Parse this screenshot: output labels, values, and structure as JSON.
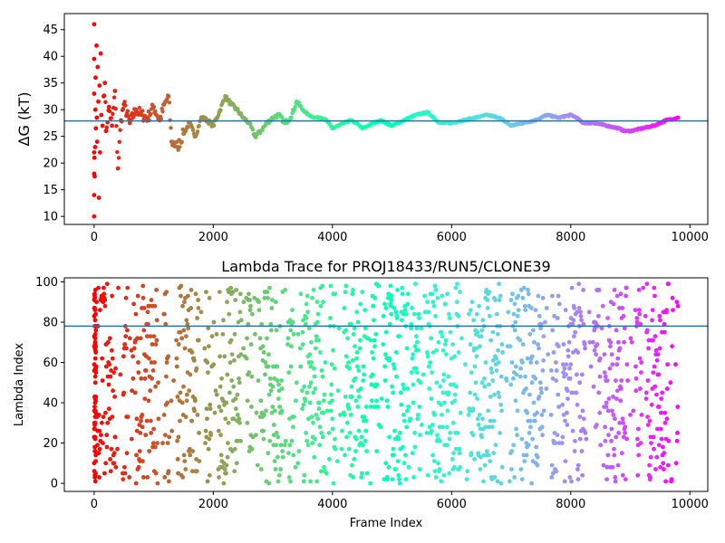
{
  "chart_data": [
    {
      "type": "scatter",
      "title": "",
      "xlabel": "",
      "ylabel": "ΔG (kT)",
      "xlim": [
        -500,
        10300
      ],
      "ylim": [
        8.5,
        48
      ],
      "xticks": [
        0,
        2000,
        4000,
        6000,
        8000,
        10000
      ],
      "yticks": [
        10,
        15,
        20,
        25,
        30,
        35,
        40,
        45
      ],
      "xtick_labels": [
        "0",
        "2000",
        "4000",
        "6000",
        "8000",
        "10000"
      ],
      "ytick_labels": [
        "10",
        "15",
        "20",
        "25",
        "30",
        "35",
        "40",
        "45"
      ],
      "hline": 27.9,
      "hline_color": "#1f77b4",
      "colormap": "rainbow (early frames red → late frames violet)",
      "grid": false,
      "series": [
        {
          "points": [
            [
              0,
              46.0
            ],
            [
              0,
              10.0
            ],
            [
              0,
              14.0
            ],
            [
              0,
              18.0
            ],
            [
              0,
              22.0
            ],
            [
              0,
              39.5
            ],
            [
              0,
              33.0
            ],
            [
              5,
              21.0
            ],
            [
              10,
              17.5
            ],
            [
              15,
              23.0
            ],
            [
              20,
              30.0
            ],
            [
              25,
              36.0
            ],
            [
              30,
              26.5
            ],
            [
              40,
              42.0
            ],
            [
              45,
              28.5
            ],
            [
              50,
              24.0
            ],
            [
              60,
              38.0
            ],
            [
              70,
              31.5
            ],
            [
              80,
              13.5
            ],
            [
              90,
              34.5
            ],
            [
              100,
              22.0
            ],
            [
              110,
              40.5
            ],
            [
              120,
              29.0
            ],
            [
              140,
              27.0
            ],
            [
              160,
              32.5
            ],
            [
              180,
              35.0
            ],
            [
              200,
              26.0
            ],
            [
              250,
              30.5
            ],
            [
              300,
              27.0
            ],
            [
              350,
              33.5
            ],
            [
              400,
              19.0
            ],
            [
              450,
              28.0
            ],
            [
              500,
              31.0
            ],
            [
              600,
              27.5
            ],
            [
              700,
              30.0
            ],
            [
              800,
              29.0
            ],
            [
              900,
              28.5
            ],
            [
              1000,
              30.5
            ],
            [
              1100,
              28.0
            ],
            [
              1200,
              31.5
            ],
            [
              1250,
              32.5
            ],
            [
              1300,
              24.0
            ],
            [
              1400,
              23.0
            ],
            [
              1500,
              25.5
            ],
            [
              1600,
              27.5
            ],
            [
              1700,
              25.0
            ],
            [
              1800,
              28.5
            ],
            [
              1900,
              28.0
            ],
            [
              2000,
              27.0
            ],
            [
              2100,
              29.5
            ],
            [
              2200,
              32.5
            ],
            [
              2300,
              31.0
            ],
            [
              2400,
              30.0
            ],
            [
              2500,
              28.5
            ],
            [
              2600,
              27.5
            ],
            [
              2700,
              25.0
            ],
            [
              2800,
              26.0
            ],
            [
              2900,
              27.5
            ],
            [
              3000,
              28.5
            ],
            [
              3100,
              29.0
            ],
            [
              3200,
              27.5
            ],
            [
              3300,
              28.5
            ],
            [
              3400,
              31.5
            ],
            [
              3500,
              30.0
            ],
            [
              3600,
              29.0
            ],
            [
              3700,
              28.5
            ],
            [
              3800,
              28.5
            ],
            [
              3900,
              28.0
            ],
            [
              4000,
              26.5
            ],
            [
              4100,
              27.0
            ],
            [
              4200,
              27.5
            ],
            [
              4300,
              28.0
            ],
            [
              4400,
              27.5
            ],
            [
              4500,
              26.5
            ],
            [
              4600,
              27.0
            ],
            [
              4700,
              27.5
            ],
            [
              4800,
              28.0
            ],
            [
              4900,
              27.5
            ],
            [
              5000,
              27.0
            ],
            [
              5200,
              28.0
            ],
            [
              5400,
              29.0
            ],
            [
              5600,
              29.5
            ],
            [
              5700,
              28.5
            ],
            [
              5800,
              27.5
            ],
            [
              6000,
              27.5
            ],
            [
              6200,
              28.0
            ],
            [
              6400,
              28.5
            ],
            [
              6600,
              29.0
            ],
            [
              6800,
              28.5
            ],
            [
              7000,
              27.0
            ],
            [
              7200,
              27.5
            ],
            [
              7400,
              28.0
            ],
            [
              7600,
              29.0
            ],
            [
              7800,
              28.5
            ],
            [
              8000,
              29.0
            ],
            [
              8100,
              28.5
            ],
            [
              8200,
              27.5
            ],
            [
              8400,
              27.5
            ],
            [
              8600,
              27.0
            ],
            [
              8800,
              26.5
            ],
            [
              8900,
              26.0
            ],
            [
              9000,
              26.0
            ],
            [
              9200,
              26.5
            ],
            [
              9400,
              27.0
            ],
            [
              9600,
              28.0
            ],
            [
              9800,
              28.5
            ]
          ]
        }
      ]
    },
    {
      "type": "scatter",
      "title": "Lambda Trace for PROJ18433/RUN5/CLONE39",
      "xlabel": "Frame Index",
      "ylabel": "Lambda Index",
      "xlim": [
        -500,
        10300
      ],
      "ylim": [
        -4,
        102
      ],
      "xticks": [
        0,
        2000,
        4000,
        6000,
        8000,
        10000
      ],
      "yticks": [
        0,
        20,
        40,
        60,
        80,
        100
      ],
      "xtick_labels": [
        "0",
        "2000",
        "4000",
        "6000",
        "8000",
        "10000"
      ],
      "ytick_labels": [
        "0",
        "20",
        "40",
        "60",
        "80",
        "100"
      ],
      "hline": 78,
      "hline_color": "#1f77b4",
      "colormap": "rainbow (early frames red → late frames violet)",
      "grid": false,
      "frames": [
        0,
        9800
      ],
      "lambda_range": [
        0,
        99
      ]
    }
  ]
}
